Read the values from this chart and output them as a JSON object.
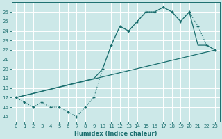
{
  "xlabel": "Humidex (Indice chaleur)",
  "xlim": [
    -0.5,
    23.5
  ],
  "ylim": [
    14.5,
    27.0
  ],
  "yticks": [
    15,
    16,
    17,
    18,
    19,
    20,
    21,
    22,
    23,
    24,
    25,
    26
  ],
  "xticks": [
    0,
    1,
    2,
    3,
    4,
    5,
    6,
    7,
    8,
    9,
    10,
    11,
    12,
    13,
    14,
    15,
    16,
    17,
    18,
    19,
    20,
    21,
    22,
    23
  ],
  "bg_color": "#cce8e8",
  "grid_color": "#ffffff",
  "line_color": "#1a6e6e",
  "line1_x": [
    0,
    1,
    2,
    3,
    4,
    5,
    6,
    7,
    8,
    9,
    10,
    11,
    12,
    13,
    14,
    15,
    16,
    17,
    18,
    19,
    20,
    21,
    22,
    23
  ],
  "line1_y": [
    17,
    16.5,
    16,
    16.5,
    16,
    16,
    15.5,
    15,
    16,
    17,
    20,
    22.5,
    24.5,
    24,
    25,
    26,
    26,
    26.5,
    26,
    25,
    26,
    24.5,
    22.5,
    22
  ],
  "line2_x": [
    0,
    9,
    10,
    11,
    12,
    13,
    14,
    15,
    16,
    17,
    18,
    19,
    20,
    21,
    22,
    23
  ],
  "line2_y": [
    17,
    19,
    20,
    22.5,
    24.5,
    24,
    25,
    26,
    26,
    26.5,
    26,
    25,
    26,
    22.5,
    22.5,
    22
  ],
  "line3_x": [
    0,
    23
  ],
  "line3_y": [
    17,
    22
  ]
}
